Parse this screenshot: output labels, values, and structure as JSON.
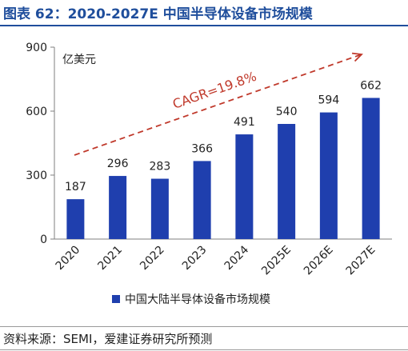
{
  "figure_title": "图表 62：2020-2027E 中国半导体设备市场规模",
  "source_note": "资料来源：SEMI，爱建证券研究所预测",
  "chart_data": {
    "type": "bar",
    "categories": [
      "2020",
      "2021",
      "2022",
      "2023",
      "2024",
      "2025E",
      "2026E",
      "2027E"
    ],
    "series": [
      {
        "name": "中国大陆半导体设备市场规模",
        "values": [
          187,
          296,
          283,
          366,
          491,
          540,
          594,
          662
        ]
      }
    ],
    "unit_label": "亿美元",
    "ylim": [
      0,
      900
    ],
    "yticks": [
      0,
      300,
      600,
      900
    ],
    "grid": false,
    "legend": "bottom",
    "annotation": "CAGR=19.8%",
    "colors": {
      "bar": "#1f3fae",
      "annotation": "#c0392b",
      "title": "#1f4e9c"
    }
  }
}
